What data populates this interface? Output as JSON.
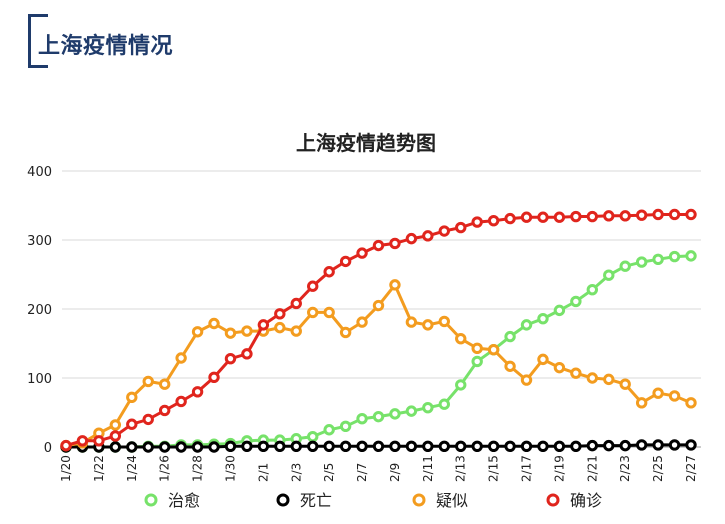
{
  "header": {
    "title": "上海疫情情况"
  },
  "chart_data": {
    "type": "line",
    "title": "上海疫情趋势图",
    "ylim": [
      0,
      400
    ],
    "yticks": [
      0,
      100,
      200,
      300,
      400
    ],
    "x": [
      "1/20",
      "1/21",
      "1/22",
      "1/23",
      "1/24",
      "1/25",
      "1/26",
      "1/27",
      "1/28",
      "1/29",
      "1/30",
      "1/31",
      "2/1",
      "2/2",
      "2/3",
      "2/4",
      "2/5",
      "2/6",
      "2/7",
      "2/8",
      "2/9",
      "2/10",
      "2/11",
      "2/12",
      "2/13",
      "2/14",
      "2/15",
      "2/16",
      "2/17",
      "2/18",
      "2/19",
      "2/20",
      "2/21",
      "2/22",
      "2/23",
      "2/24",
      "2/25",
      "2/26",
      "2/27"
    ],
    "xtick_labels": [
      "1/20",
      "1/22",
      "1/24",
      "1/26",
      "1/28",
      "1/30",
      "2/1",
      "2/3",
      "2/5",
      "2/7",
      "2/9",
      "2/11",
      "2/13",
      "2/15",
      "2/17",
      "2/19",
      "2/21",
      "2/23",
      "2/25",
      "2/27"
    ],
    "grid": true,
    "legend_position": "bottom",
    "series": [
      {
        "name": "治愈",
        "color": "#77e26a",
        "values": [
          0,
          0,
          0,
          0,
          0,
          1,
          1,
          3,
          3,
          4,
          5,
          9,
          10,
          10,
          12,
          15,
          25,
          30,
          41,
          44,
          48,
          52,
          57,
          62,
          90,
          124,
          141,
          160,
          177,
          186,
          198,
          211,
          228,
          249,
          262,
          268,
          272,
          276,
          277
        ]
      },
      {
        "name": "死亡",
        "color": "#000000",
        "values": [
          0,
          0,
          0,
          0,
          0,
          0,
          0,
          0,
          0,
          0,
          1,
          1,
          1,
          1,
          1,
          1,
          1,
          1,
          1,
          1,
          1,
          1,
          1,
          1,
          1,
          1,
          1,
          1,
          1,
          1,
          1,
          1,
          2,
          2,
          2,
          3,
          3,
          3,
          3
        ]
      },
      {
        "name": "疑似",
        "color": "#f39c1f",
        "values": [
          2,
          6,
          20,
          32,
          72,
          95,
          91,
          129,
          167,
          179,
          165,
          168,
          168,
          173,
          168,
          195,
          195,
          166,
          181,
          205,
          235,
          181,
          177,
          182,
          157,
          143,
          141,
          117,
          97,
          127,
          115,
          107,
          100,
          98,
          91,
          64,
          78,
          74,
          64
        ]
      },
      {
        "name": "确诊",
        "color": "#e0251d",
        "values": [
          2,
          9,
          9,
          16,
          33,
          40,
          53,
          66,
          80,
          101,
          128,
          135,
          177,
          193,
          208,
          233,
          254,
          269,
          281,
          292,
          295,
          302,
          306,
          313,
          318,
          326,
          328,
          331,
          333,
          333,
          333,
          334,
          334,
          335,
          335,
          336,
          337,
          337,
          337
        ]
      }
    ]
  }
}
